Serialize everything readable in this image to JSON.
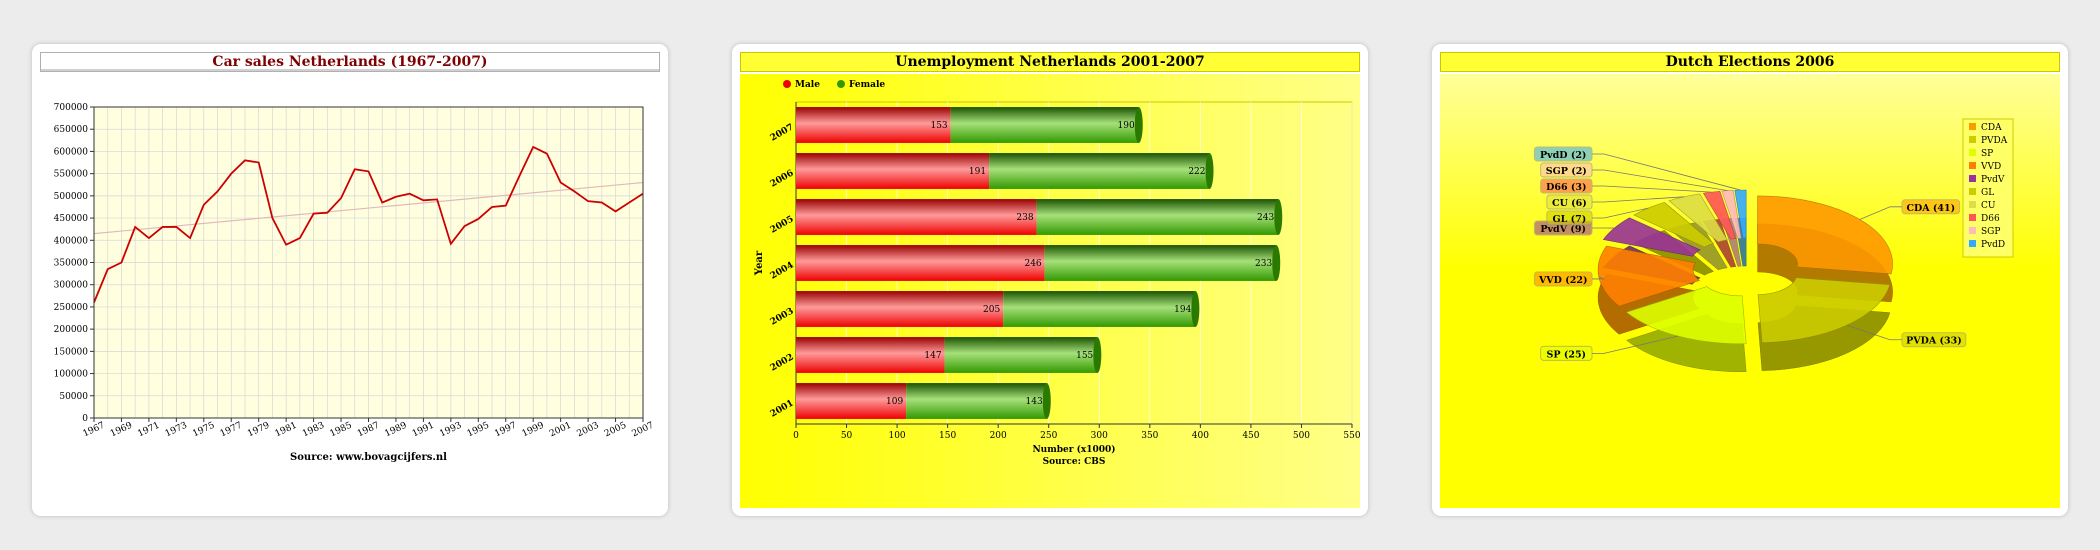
{
  "charts": [
    {
      "title": "Car sales Netherlands (1967-2007)",
      "source": "Source: www.bovagcijfers.nl",
      "colors": {
        "line": "#cc0000",
        "trend": "#e2b9b9",
        "plot_bg": "#ffffe0",
        "grid": "#d6d6d6"
      }
    },
    {
      "title": "Unemployment Netherlands 2001-2007",
      "xlabel": "Number (x1000)",
      "ylabel": "Year",
      "source": "Source: CBS",
      "colors": {
        "male": "#ee0000",
        "female": "#339900"
      }
    },
    {
      "title": "Dutch Elections 2006"
    }
  ],
  "chart_data": [
    {
      "type": "line",
      "title": "Car sales Netherlands (1967-2007)",
      "x": [
        1967,
        1968,
        1969,
        1970,
        1971,
        1972,
        1973,
        1974,
        1975,
        1976,
        1977,
        1978,
        1979,
        1980,
        1981,
        1982,
        1983,
        1984,
        1985,
        1986,
        1987,
        1988,
        1989,
        1990,
        1991,
        1992,
        1993,
        1994,
        1995,
        1996,
        1997,
        1998,
        1999,
        2000,
        2001,
        2002,
        2003,
        2004,
        2005,
        2006,
        2007
      ],
      "values": [
        260000,
        335000,
        350000,
        430000,
        405000,
        430000,
        430000,
        405000,
        480000,
        510000,
        550000,
        580000,
        575000,
        450000,
        390000,
        405000,
        460000,
        462000,
        495000,
        560000,
        555000,
        485000,
        498000,
        505000,
        490000,
        492000,
        392000,
        432000,
        448000,
        475000,
        478000,
        545000,
        610000,
        595000,
        530000,
        510000,
        488000,
        485000,
        465000,
        485000,
        505000
      ],
      "trend": {
        "start": 415000,
        "end": 530000
      },
      "xticks": [
        "1967",
        "1969",
        "1971",
        "1973",
        "1975",
        "1977",
        "1979",
        "1981",
        "1983",
        "1985",
        "1987",
        "1989",
        "1991",
        "1993",
        "1995",
        "1997",
        "1999",
        "2001",
        "2003",
        "2005",
        "2007"
      ],
      "yticks": [
        "0",
        "50000",
        "100000",
        "150000",
        "200000",
        "250000",
        "300000",
        "350000",
        "400000",
        "450000",
        "500000",
        "550000",
        "600000",
        "650000",
        "700000"
      ],
      "ylim": [
        0,
        700000
      ],
      "grid": true
    },
    {
      "type": "bar",
      "orientation": "horizontal",
      "stacked": true,
      "title": "Unemployment Netherlands 2001-2007",
      "categories": [
        "2001",
        "2002",
        "2003",
        "2004",
        "2005",
        "2006",
        "2007"
      ],
      "series": [
        {
          "name": "Male",
          "values": [
            109,
            147,
            205,
            246,
            238,
            191,
            153
          ]
        },
        {
          "name": "Female",
          "values": [
            143,
            155,
            194,
            233,
            243,
            222,
            190
          ]
        }
      ],
      "xticks": [
        "0",
        "50",
        "100",
        "150",
        "200",
        "250",
        "300",
        "350",
        "400",
        "450",
        "500",
        "550"
      ],
      "xlim": [
        0,
        550
      ],
      "xlabel": "Number (x1000)",
      "ylabel": "Year",
      "legend": "top-left",
      "grid": true
    },
    {
      "type": "pie",
      "style": "3d-donut-exploded",
      "title": "Dutch Elections 2006",
      "labels": [
        "CDA",
        "PVDA",
        "SP",
        "VVD",
        "PvdV",
        "GL",
        "CU",
        "D66",
        "SGP",
        "PvdD"
      ],
      "values": [
        41,
        33,
        25,
        22,
        9,
        7,
        6,
        3,
        2,
        2
      ],
      "slice_labels": [
        "CDA (41)",
        "PVDA (33)",
        "SP (25)",
        "VVD (22)",
        "PvdV (9)",
        "GL (7)",
        "CU (6)",
        "D66 (3)",
        "SGP (2)",
        "PvdD (2)"
      ],
      "colors": [
        "#ff9900",
        "#cccc00",
        "#ddff00",
        "#ff8000",
        "#993399",
        "#cccc00",
        "#dddd44",
        "#ff5555",
        "#ffbbbb",
        "#33aaff"
      ],
      "legend": "top-right"
    }
  ]
}
